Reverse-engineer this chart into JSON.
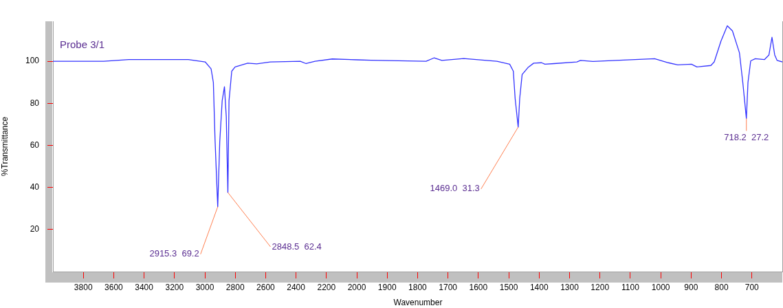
{
  "chart_data": [
    {
      "type": "line",
      "title": "Probe 3/1",
      "ylabel": "%Transmittance",
      "xlim": [
        4000,
        2000
      ],
      "ylim": [
        0,
        119
      ],
      "grid": false,
      "legend": false,
      "xticks": [
        3800,
        3600,
        3400,
        3200,
        3000,
        2800,
        2600,
        2400,
        2200,
        2000
      ],
      "yticks": [
        20,
        40,
        60,
        80,
        100
      ],
      "series": [
        {
          "color": "#3333ff",
          "x": [
            4000,
            3666,
            3500,
            3109,
            2998,
            2959,
            2944,
            2933,
            2915.3,
            2902,
            2886,
            2871,
            2859,
            2848.5,
            2841,
            2823,
            2801,
            2718,
            2659,
            2569,
            2372,
            2334,
            2275,
            2161,
            2000
          ],
          "values": [
            100,
            100,
            100.8,
            100.8,
            99.7,
            96.4,
            89.9,
            62.8,
            30.8,
            61.6,
            81.2,
            87.9,
            73.6,
            37.6,
            81.2,
            95.3,
            97.3,
            99.1,
            98.8,
            99.7,
            100,
            98.9,
            100,
            101.1,
            100.7
          ]
        }
      ],
      "annotations": [
        {
          "text": "2915.3  69.2",
          "x": 2915.3,
          "y": 30.8
        },
        {
          "text": "2848.5  62.4",
          "x": 2848.5,
          "y": 37.6
        }
      ]
    },
    {
      "type": "line",
      "xlabel": "Wavenumber",
      "tick_labels": "x",
      "xlim": [
        2000,
        600
      ],
      "ylim": [
        0,
        119
      ],
      "grid": false,
      "legend": false,
      "xticks": [
        {
          "value": 2000,
          "label": null
        },
        1900,
        1800,
        1700,
        1600,
        1500,
        1400,
        1300,
        1200,
        1100,
        1000,
        900,
        800,
        700
      ],
      "yticks": [
        20,
        40,
        60,
        80,
        100
      ],
      "series": [
        {
          "color": "#3333ff",
          "x": [
            2000,
            1953,
            1772,
            1746,
            1720,
            1648,
            1539,
            1497,
            1485,
            1479,
            1469.0,
            1464,
            1456,
            1437,
            1418,
            1392,
            1381,
            1351,
            1276,
            1264,
            1223,
            1148,
            1020,
            975,
            944,
            899,
            881,
            835,
            824,
            802,
            781,
            764,
            741,
            730,
            718.2,
            713,
            704,
            689,
            659,
            644,
            634,
            625,
            617,
            600
          ],
          "values": [
            100.7,
            100.5,
            100,
            101.6,
            100.4,
            101.3,
            100,
            98.6,
            95.3,
            82.3,
            68.7,
            82.3,
            93.7,
            97,
            99.1,
            99.3,
            98.6,
            98.9,
            99.7,
            100.4,
            99.9,
            100.4,
            101.2,
            99.3,
            98.3,
            98.6,
            97.3,
            98,
            99.7,
            109.5,
            116.9,
            114.4,
            104,
            89.9,
            72.8,
            89.9,
            100.2,
            101.2,
            100.8,
            103,
            111.4,
            103,
            100.4,
            99.7
          ]
        }
      ],
      "annotations": [
        {
          "text": "1469.0  31.3",
          "x": 1469.0,
          "y": 68.7
        },
        {
          "text": "718.2  27.2",
          "x": 718.2,
          "y": 72.8
        }
      ]
    }
  ]
}
